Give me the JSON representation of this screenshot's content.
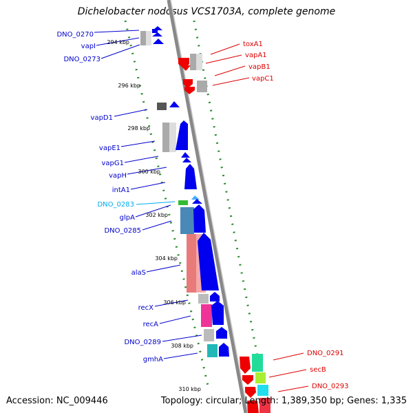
{
  "title": "Dichelobacter nodosus VCS1703A, complete genome",
  "footer": {
    "accession": "Accession: NC_009446",
    "summary": "Topology: circular; Length: 1,389,350 bp; Genes: 1,335"
  },
  "colors": {
    "forward_arrow": "#0000ee",
    "reverse_arrow": "#ee0000",
    "backbone": "#888888",
    "tick_dash": "#2a8a2a",
    "label_blue": "#0000cc",
    "label_red": "#dd0000",
    "label_cyan": "#00aaee"
  },
  "ticks": [
    "294 kbp",
    "296 kbp",
    "298 kbp",
    "300 kbp",
    "302 kbp",
    "304 kbp",
    "306 kbp",
    "308 kbp",
    "310 kbp"
  ],
  "labels_left": [
    "DNO_0270",
    "vapI",
    "DNO_0273",
    "vapD1",
    "vapE1",
    "vapG1",
    "vapH",
    "intA1",
    "DNO_0283",
    "glpA",
    "DNO_0285",
    "alaS",
    "recX",
    "recA",
    "DNO_0289",
    "gmhA"
  ],
  "labels_right": [
    "toxA1",
    "vapA1",
    "vapB1",
    "vapC1",
    "DNO_0291",
    "secB",
    "DNO_0293"
  ]
}
